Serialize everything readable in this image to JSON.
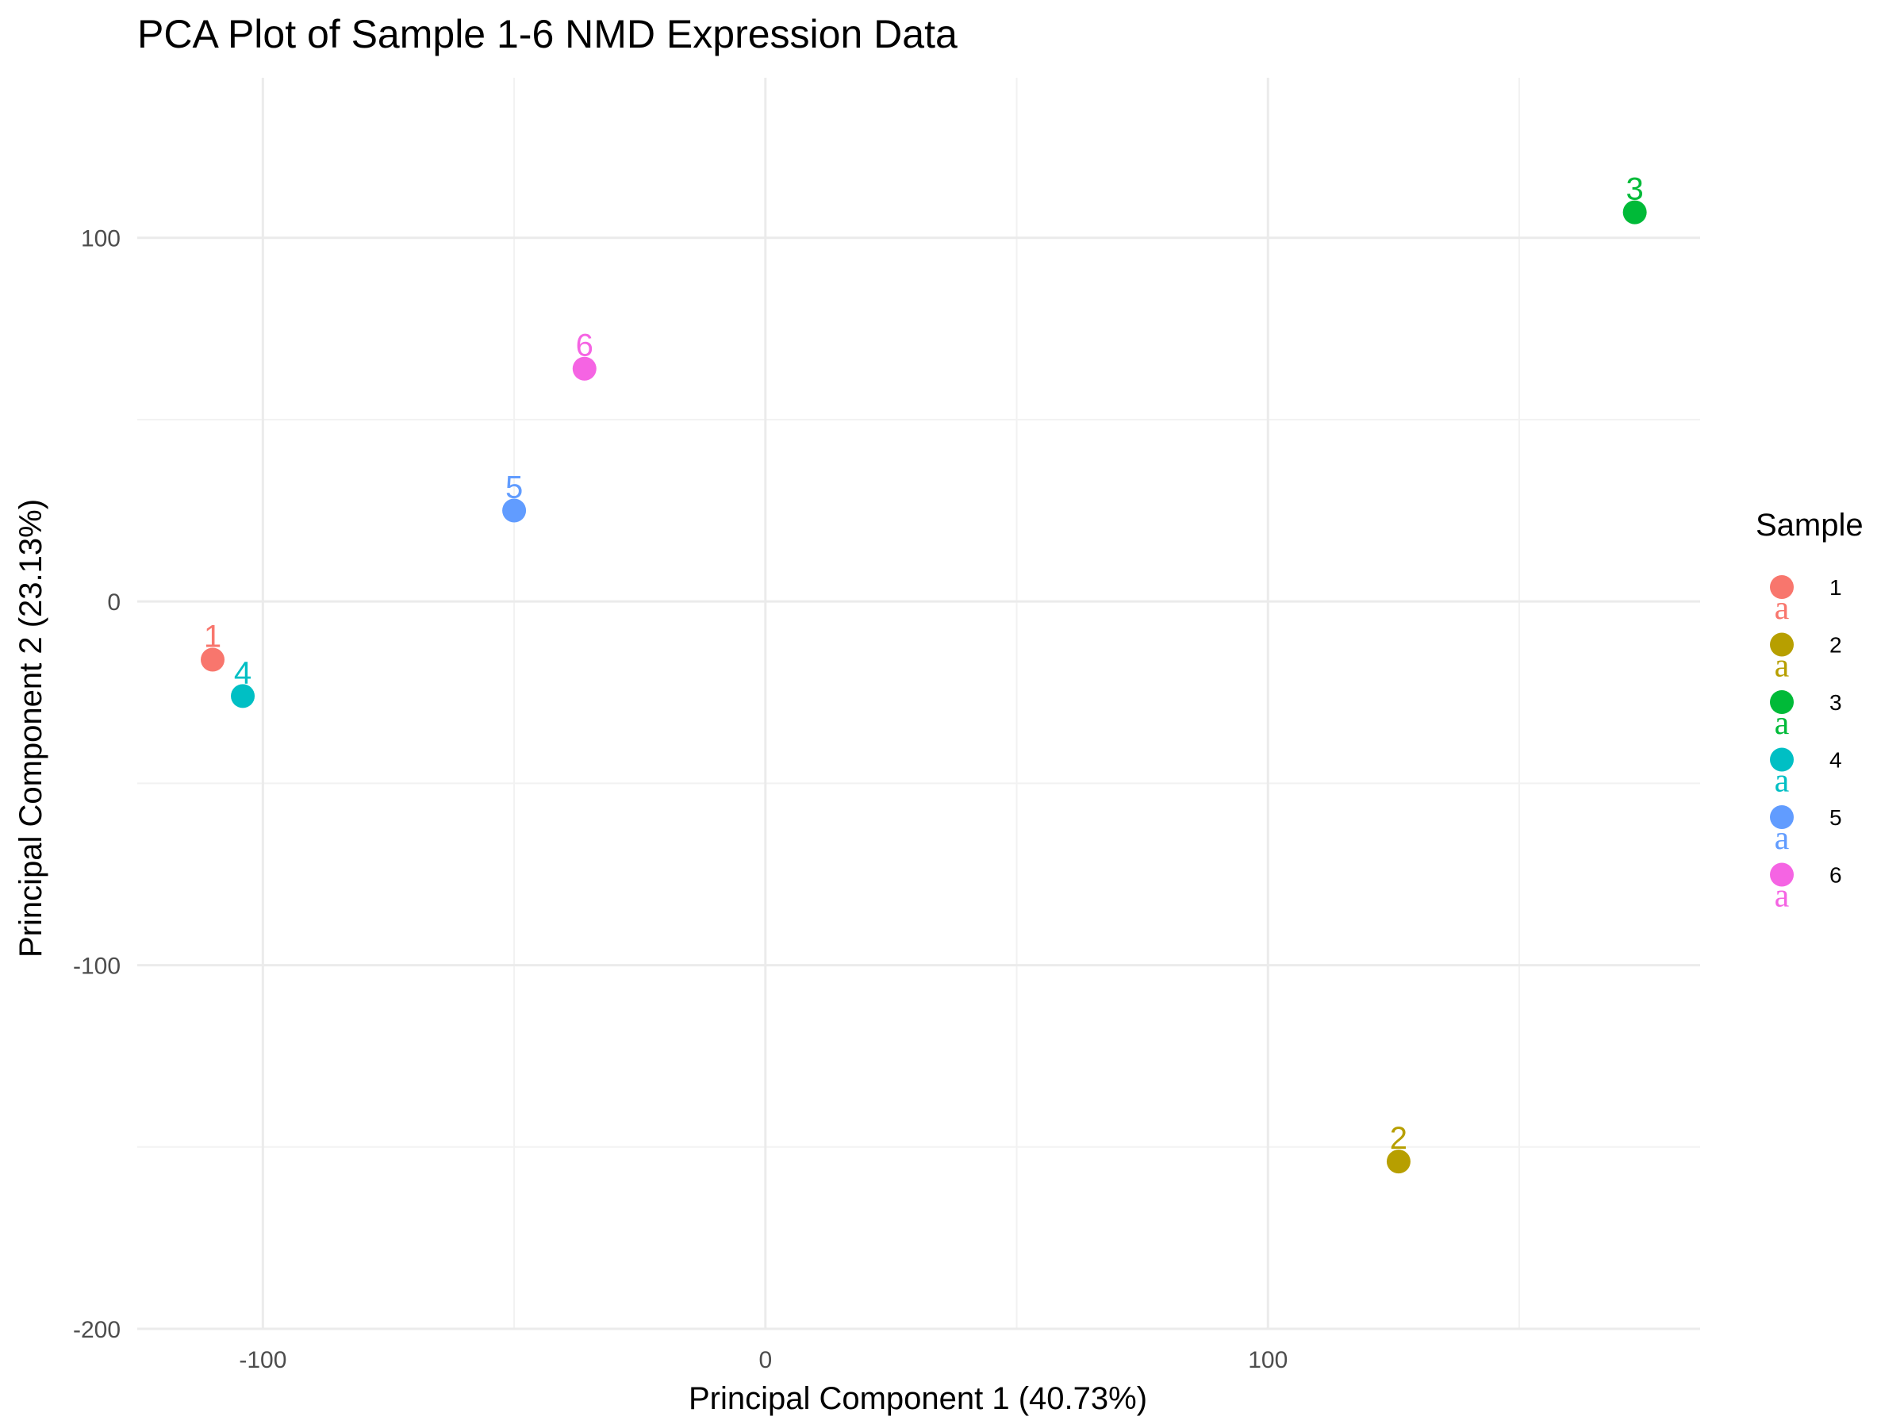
{
  "chart_data": {
    "type": "scatter",
    "title": "PCA Plot of Sample 1-6 NMD Expression Data",
    "xlabel": "Principal Component 1 (40.73%)",
    "ylabel": "Principal Component 2 (23.13%)",
    "xlim": [
      -125,
      186
    ],
    "ylim": [
      -200,
      144
    ],
    "x_ticks": [
      -100,
      0,
      100
    ],
    "x_tick_labels": [
      "-100",
      "0",
      "100"
    ],
    "y_ticks": [
      -200,
      -100,
      0,
      100
    ],
    "y_tick_labels": [
      "-200",
      "-100",
      "0",
      "100"
    ],
    "grid": true,
    "legend": {
      "title": "Sample",
      "placement": "right",
      "key_glyph_text": "a"
    },
    "points": [
      {
        "label": "1",
        "x": -110,
        "y": -16,
        "color": "#F8766D"
      },
      {
        "label": "2",
        "x": 126,
        "y": -154,
        "color": "#B79F00"
      },
      {
        "label": "3",
        "x": 173,
        "y": 107,
        "color": "#00BA38"
      },
      {
        "label": "4",
        "x": -104,
        "y": -26,
        "color": "#00BFC4"
      },
      {
        "label": "5",
        "x": -50,
        "y": 25,
        "color": "#619CFF"
      },
      {
        "label": "6",
        "x": -36,
        "y": 64,
        "color": "#F564E3"
      }
    ]
  }
}
